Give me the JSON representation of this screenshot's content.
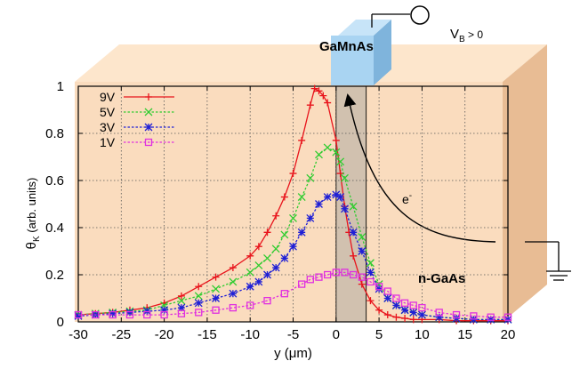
{
  "annotations": {
    "contact_label": "GaMnAs",
    "bias_label_main": "V",
    "bias_label_sub": "B",
    "bias_label_rest": " > 0",
    "electron_main": "e",
    "electron_sup": "-",
    "substrate_label": "n-GaAs"
  },
  "colors": {
    "block_face": "#fadcbe",
    "block_side": "#e8bc94",
    "contact_face": "#a9d4f2",
    "contact_side": "#7fb4dc",
    "channel_fill": "#cdbfae"
  },
  "chart_data": {
    "type": "line",
    "ylabel_main": "θ",
    "ylabel_sub": "K",
    "ylabel_rest": " (arb. units)",
    "xlabel": "y (μm)",
    "xlim": [
      -30,
      20
    ],
    "ylim": [
      0,
      1
    ],
    "xticks": [
      "-30",
      "-25",
      "-20",
      "-15",
      "-10",
      "-5",
      "0",
      "5",
      "10",
      "15",
      "20"
    ],
    "yticks": [
      "0",
      "0.2",
      "0.4",
      "0.6",
      "0.8",
      "1"
    ],
    "grid": "dotted",
    "legend_position": "top-left",
    "shaded_region": [
      0,
      3.5
    ],
    "series": [
      {
        "name": "9V",
        "color": "#e8141c",
        "marker": "plus",
        "x": [
          -30,
          -28,
          -26,
          -24,
          -22,
          -20,
          -18,
          -16,
          -14,
          -12,
          -10,
          -9,
          -8,
          -7,
          -6,
          -5,
          -4,
          -3,
          -2.5,
          -2,
          -1.5,
          -1,
          0,
          0.5,
          1,
          1.5,
          2,
          3,
          4,
          5,
          6,
          7,
          8,
          9,
          10,
          12,
          14,
          16,
          18,
          20
        ],
        "y": [
          0.03,
          0.035,
          0.04,
          0.05,
          0.06,
          0.08,
          0.11,
          0.15,
          0.19,
          0.23,
          0.28,
          0.32,
          0.38,
          0.45,
          0.53,
          0.63,
          0.77,
          0.92,
          0.99,
          0.98,
          0.96,
          0.93,
          0.77,
          0.63,
          0.49,
          0.38,
          0.28,
          0.16,
          0.09,
          0.05,
          0.03,
          0.02,
          0.015,
          0.01,
          0.01,
          0.01,
          0.005,
          0.005,
          0.005,
          0.005
        ]
      },
      {
        "name": "5V",
        "color": "#30cc30",
        "marker": "x",
        "x": [
          -30,
          -28,
          -26,
          -24,
          -22,
          -20,
          -18,
          -16,
          -14,
          -12,
          -10,
          -9,
          -8,
          -7,
          -6,
          -5,
          -4,
          -3,
          -2,
          -1,
          0,
          0.5,
          1,
          2,
          3,
          4,
          5,
          6,
          7,
          8,
          9,
          10,
          12,
          14,
          16,
          18,
          20
        ],
        "y": [
          0.03,
          0.035,
          0.04,
          0.045,
          0.05,
          0.07,
          0.09,
          0.11,
          0.14,
          0.17,
          0.21,
          0.24,
          0.27,
          0.31,
          0.37,
          0.44,
          0.53,
          0.61,
          0.71,
          0.74,
          0.72,
          0.68,
          0.61,
          0.49,
          0.36,
          0.25,
          0.16,
          0.1,
          0.07,
          0.05,
          0.04,
          0.03,
          0.02,
          0.015,
          0.01,
          0.01,
          0.01
        ]
      },
      {
        "name": "3V",
        "color": "#1f1fd6",
        "marker": "star",
        "x": [
          -30,
          -28,
          -26,
          -24,
          -22,
          -20,
          -18,
          -16,
          -14,
          -12,
          -10,
          -9,
          -8,
          -7,
          -6,
          -5,
          -4,
          -3,
          -2,
          -1,
          0,
          0.5,
          1,
          2,
          3,
          4,
          5,
          6,
          7,
          8,
          9,
          10,
          12,
          14,
          16,
          18,
          20
        ],
        "y": [
          0.025,
          0.03,
          0.035,
          0.04,
          0.045,
          0.05,
          0.06,
          0.08,
          0.1,
          0.12,
          0.15,
          0.17,
          0.2,
          0.23,
          0.27,
          0.32,
          0.38,
          0.44,
          0.5,
          0.53,
          0.54,
          0.53,
          0.48,
          0.38,
          0.3,
          0.21,
          0.14,
          0.1,
          0.07,
          0.05,
          0.04,
          0.03,
          0.02,
          0.015,
          0.01,
          0.01,
          0.01
        ]
      },
      {
        "name": "1V",
        "color": "#e030e0",
        "marker": "square",
        "x": [
          -30,
          -28,
          -26,
          -24,
          -22,
          -20,
          -18,
          -16,
          -14,
          -12,
          -10,
          -8,
          -6,
          -4,
          -3,
          -2,
          -1,
          0,
          1,
          2,
          3,
          4,
          5,
          6,
          7,
          8,
          9,
          10,
          12,
          14,
          16,
          18,
          20
        ],
        "y": [
          0.03,
          0.03,
          0.03,
          0.03,
          0.03,
          0.03,
          0.035,
          0.04,
          0.05,
          0.06,
          0.07,
          0.09,
          0.12,
          0.16,
          0.18,
          0.19,
          0.2,
          0.21,
          0.21,
          0.2,
          0.19,
          0.17,
          0.15,
          0.13,
          0.1,
          0.08,
          0.07,
          0.06,
          0.04,
          0.03,
          0.025,
          0.02,
          0.02
        ]
      }
    ]
  }
}
